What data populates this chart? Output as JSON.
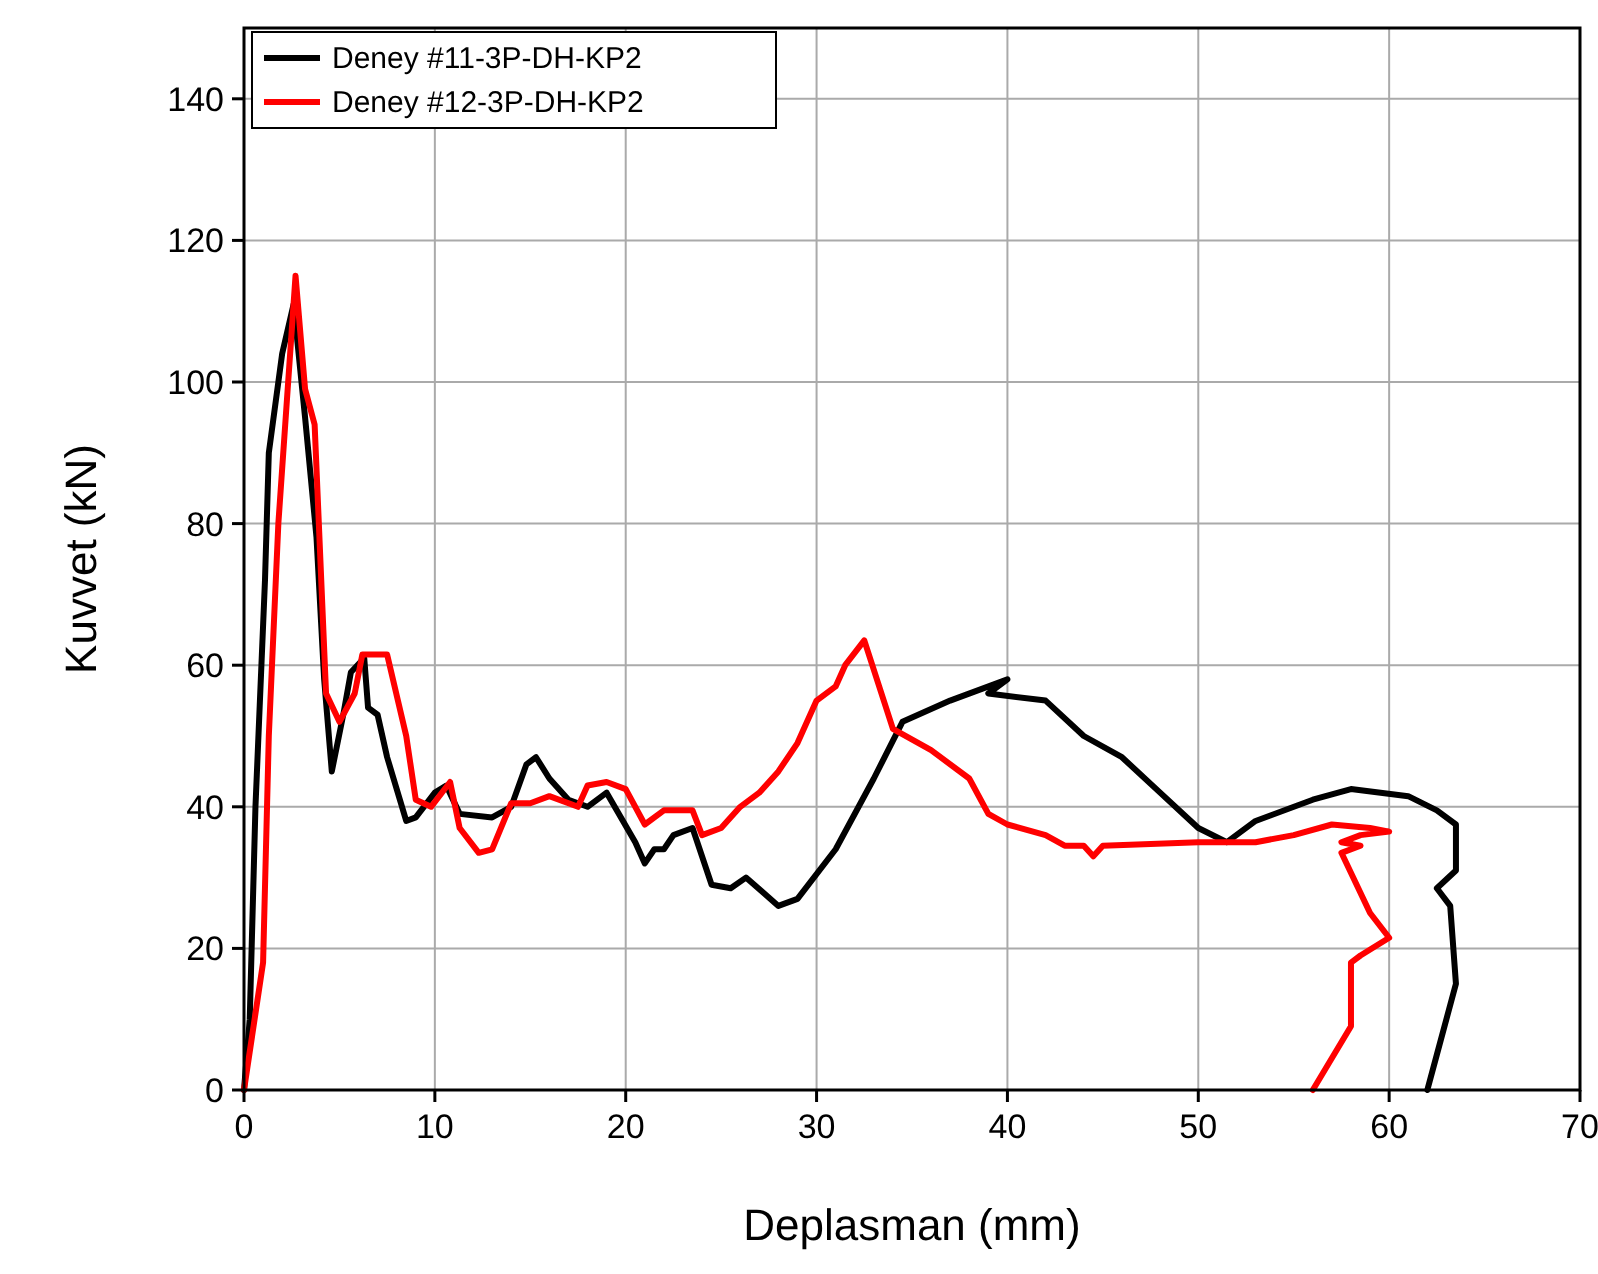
{
  "chart_data": {
    "type": "line",
    "xlabel": "Deplasman (mm)",
    "ylabel": "Kuvvet (kN)",
    "xlim": [
      0,
      70
    ],
    "ylim": [
      0,
      150
    ],
    "xticks": [
      0,
      10,
      20,
      30,
      40,
      50,
      60,
      70
    ],
    "yticks": [
      0,
      20,
      40,
      60,
      80,
      100,
      120,
      140
    ],
    "grid": true,
    "legend": "top left",
    "line_style": "solid",
    "marker": "none",
    "series": [
      {
        "name": "Deney #11-3P-DH-KP2",
        "color": "#000000",
        "x": [
          0,
          0.3,
          0.6,
          1.1,
          1.3,
          2,
          2.6,
          3.2,
          3.8,
          4.2,
          4.6,
          5.2,
          5.6,
          6.3,
          6.5,
          7,
          7.5,
          8.5,
          9,
          10,
          10.6,
          11.3,
          13,
          14,
          14.8,
          15.3,
          16,
          17,
          18,
          19,
          20.5,
          21,
          21.5,
          22,
          22.5,
          23.5,
          24.5,
          25.5,
          26.3,
          28,
          29,
          31,
          33,
          34.5,
          37,
          40,
          39,
          42,
          44,
          46,
          48,
          50,
          51.5,
          53,
          56,
          58,
          61,
          62.5,
          63.5,
          63.5,
          62.5,
          63.2,
          63.5,
          62.5,
          62
        ],
        "values": [
          0,
          10,
          40,
          72,
          90,
          104,
          111,
          95,
          78,
          58,
          45,
          53,
          59,
          61,
          54,
          53,
          47,
          38,
          38.5,
          42,
          43,
          39,
          38.5,
          40,
          46,
          47,
          44,
          41,
          40,
          42,
          35,
          32,
          34,
          34,
          36,
          37,
          29,
          28.5,
          30,
          26,
          27,
          34,
          44,
          52,
          55,
          58,
          56,
          55,
          50,
          47,
          42,
          37,
          35,
          38,
          41,
          42.5,
          41.5,
          39.5,
          37.5,
          31,
          28.5,
          26,
          15,
          5,
          0
        ]
      },
      {
        "name": "Deney #12-3P-DH-KP2",
        "color": "#ff0000",
        "x": [
          0,
          1,
          1.3,
          1.8,
          2.7,
          3.2,
          3.7,
          4.3,
          5,
          5.8,
          6.2,
          7.5,
          8.5,
          9,
          9.8,
          10.8,
          11.3,
          12.3,
          13,
          14,
          15,
          16,
          17.5,
          18,
          19,
          20,
          21,
          22,
          23.5,
          24,
          25,
          26,
          27,
          28,
          29,
          30,
          31,
          31.5,
          32.5,
          34,
          36,
          38,
          39,
          40,
          42,
          43,
          44,
          44.5,
          45,
          50,
          53,
          55,
          57,
          59,
          60,
          58.5,
          57.5,
          58.5,
          57.5,
          59,
          60,
          58.5,
          58,
          58,
          56
        ],
        "values": [
          0,
          18,
          50,
          80,
          115,
          99,
          94,
          56,
          52,
          56,
          61.5,
          61.5,
          50,
          41,
          40,
          43.5,
          37,
          33.5,
          34,
          40.5,
          40.5,
          41.5,
          40,
          43,
          43.5,
          42.5,
          37.5,
          39.5,
          39.5,
          36,
          37,
          40,
          42,
          45,
          49,
          55,
          57,
          60,
          63.5,
          51,
          48,
          44,
          39,
          37.5,
          36,
          34.5,
          34.5,
          33,
          34.5,
          35,
          35,
          36,
          37.5,
          37,
          36.5,
          36,
          35,
          34.5,
          33.5,
          25,
          21.5,
          19,
          18,
          9,
          0
        ]
      }
    ]
  }
}
